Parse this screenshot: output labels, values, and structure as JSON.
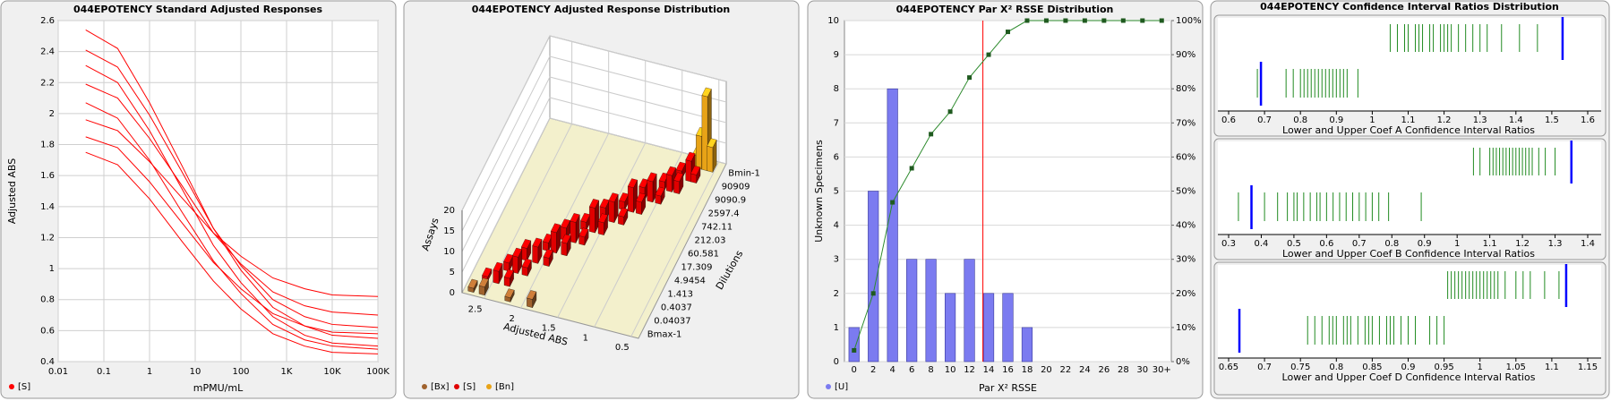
{
  "chart_data": [
    {
      "type": "line",
      "title": "044EPOTENCY Standard Adjusted Responses",
      "xlabel": "mPMU/mL",
      "ylabel": "Adjusted ABS",
      "log_x": true,
      "grid": true,
      "legend": "bottom-left",
      "x": [
        0.04,
        0.2,
        1,
        5,
        25,
        100,
        500,
        2500,
        10000,
        100000
      ],
      "series": [
        {
          "name": "[S]",
          "color": "#ff0000",
          "values": [
            [
              2.54,
              2.42,
              2.07,
              1.67,
              1.26,
              0.99,
              0.75,
              0.63,
              0.57,
              0.55
            ],
            [
              2.41,
              2.3,
              1.99,
              1.63,
              1.26,
              1.02,
              0.8,
              0.69,
              0.64,
              0.62
            ],
            [
              2.31,
              2.2,
              1.89,
              1.52,
              1.15,
              0.91,
              0.69,
              0.57,
              0.52,
              0.5
            ],
            [
              2.19,
              2.1,
              1.84,
              1.54,
              1.23,
              1.03,
              0.85,
              0.76,
              0.72,
              0.7
            ],
            [
              2.07,
              1.97,
              1.7,
              1.37,
              1.05,
              0.84,
              0.64,
              0.54,
              0.5,
              0.48
            ],
            [
              1.96,
              1.89,
              1.69,
              1.46,
              1.23,
              1.08,
              0.94,
              0.87,
              0.83,
              0.82
            ],
            [
              1.85,
              1.78,
              1.56,
              1.3,
              1.04,
              0.87,
              0.71,
              0.63,
              0.59,
              0.58
            ],
            [
              1.75,
              1.67,
              1.45,
              1.18,
              0.92,
              0.74,
              0.58,
              0.5,
              0.46,
              0.45
            ]
          ]
        }
      ],
      "xlim": [
        0.01,
        100000
      ],
      "xticks": [
        0.01,
        0.1,
        1,
        10,
        100,
        {
          "value": 1000,
          "label": "1K"
        },
        {
          "value": 10000,
          "label": "10K"
        },
        {
          "value": 100000,
          "label": "100K"
        }
      ],
      "ylim": [
        0.4,
        2.6
      ],
      "yticks": [
        0.4,
        0.6,
        0.8,
        1,
        1.2,
        1.4,
        1.6,
        1.8,
        2,
        2.2,
        2.4,
        2.6
      ]
    },
    {
      "type": "bar3d",
      "title": "044EPOTENCY Adjusted Response Distribution",
      "xlabel": "Adjusted ABS",
      "ylabel": "Dilutions",
      "zlabel": "Assays",
      "dilutions": [
        "Bmax-1",
        "0.04037",
        "0.4037",
        "1.413",
        "4.9454",
        "17.309",
        "60.581",
        "212.03",
        "742.11",
        "2597.4",
        "9090.9",
        "90909",
        "Bmin-1"
      ],
      "xlim": [
        0.4,
        2.8
      ],
      "xticks": [
        0.5,
        1,
        1.5,
        2,
        2.5
      ],
      "zlim": [
        0,
        20
      ],
      "zticks": [
        0,
        5,
        10,
        15,
        20
      ],
      "floor_color": "#f3f0cc",
      "series": [
        {
          "name": "[Bx]",
          "color": "#a0622d",
          "x": [
            2.7,
            2.55,
            2.2,
            1.9
          ],
          "dilution": [
            "Bmax-1",
            "Bmax-1",
            "Bmax-1",
            "Bmax-1"
          ],
          "values": [
            1,
            2,
            1,
            2
          ]
        },
        {
          "name": "[S]",
          "color": "#e00000",
          "x": [
            2.6,
            2.45,
            2.3,
            2.4,
            2.28,
            2.15,
            2.25,
            2.1,
            1.95,
            2.05,
            1.94,
            1.8,
            1.9,
            1.77,
            1.65,
            1.72,
            1.6,
            1.48,
            1.55,
            1.43,
            1.3,
            1.38,
            1.26,
            1.15,
            1.2,
            1.09,
            0.98,
            1.02,
            0.92,
            0.82,
            0.88,
            0.75,
            0.68
          ],
          "dilution": [
            "0.04037",
            "0.04037",
            "0.04037",
            "0.4037",
            "0.4037",
            "0.4037",
            "1.413",
            "1.413",
            "1.413",
            "4.9454",
            "4.9454",
            "4.9454",
            "17.309",
            "17.309",
            "17.309",
            "60.581",
            "60.581",
            "60.581",
            "212.03",
            "212.03",
            "212.03",
            "742.11",
            "742.11",
            "742.11",
            "2597.4",
            "2597.4",
            "2597.4",
            "9090.9",
            "9090.9",
            "9090.9",
            "90909",
            "90909",
            "90909"
          ],
          "values": [
            1,
            3,
            2,
            2,
            4,
            2,
            3,
            4,
            2,
            2,
            5,
            3,
            3,
            5,
            2,
            2,
            6,
            3,
            3,
            5,
            2,
            2,
            6,
            3,
            3,
            5,
            2,
            2,
            4,
            3,
            2,
            5,
            2
          ]
        },
        {
          "name": "[Bn]",
          "color": "#e8a317",
          "x": [
            0.75,
            0.7,
            0.62,
            0.55
          ],
          "dilution": [
            "Bmin-1",
            "Bmin-1",
            "Bmin-1",
            "Bmin-1"
          ],
          "values": [
            3,
            8,
            18,
            6
          ]
        }
      ]
    },
    {
      "type": "bar",
      "title": "044EPOTENCY Par X² RSSE Distribution",
      "xlabel": "Par X² RSSE",
      "ylabel": "Unknown Specimens",
      "grid": true,
      "categories": [
        0,
        2,
        4,
        6,
        8,
        10,
        12,
        14,
        16,
        18,
        20,
        22,
        24,
        26,
        28,
        30,
        "30+"
      ],
      "series": [
        {
          "name": "[U]",
          "color": "#7b7bf0",
          "values": [
            1,
            5,
            8,
            3,
            3,
            2,
            3,
            2,
            2,
            1,
            0,
            0,
            0,
            0,
            0,
            0,
            0
          ]
        }
      ],
      "cumulative": {
        "axis": "y2",
        "color": "#2e8b2e",
        "values": [
          3.3,
          20,
          46.7,
          56.7,
          66.7,
          73.3,
          83.3,
          90,
          96.7,
          100,
          100,
          100,
          100,
          100,
          100,
          100,
          100
        ]
      },
      "threshold": {
        "value": 13.4,
        "color": "#ff0000"
      },
      "ylim": [
        0,
        10
      ],
      "yticks": [
        0,
        1,
        2,
        3,
        4,
        5,
        6,
        7,
        8,
        9,
        10
      ],
      "y2lim": [
        0,
        100
      ],
      "y2ticks": [
        {
          "value": 0,
          "label": "0%"
        },
        {
          "value": 10,
          "label": "10%"
        },
        {
          "value": 20,
          "label": "20%"
        },
        {
          "value": 30,
          "label": "30%"
        },
        {
          "value": 40,
          "label": "40%"
        },
        {
          "value": 50,
          "label": "50%"
        },
        {
          "value": 60,
          "label": "60%"
        },
        {
          "value": 70,
          "label": "70%"
        },
        {
          "value": 80,
          "label": "80%"
        },
        {
          "value": 90,
          "label": "90%"
        },
        {
          "value": 100,
          "label": "100%"
        }
      ]
    },
    {
      "type": "strip",
      "title": "044EPOTENCY Confidence Interval Ratios Distribution",
      "marker_color": "#0000ff",
      "panels": [
        {
          "xlabel": "Lower and Upper Coef A Confidence Interval Ratios",
          "xlim": [
            0.6,
            1.6
          ],
          "xticks": [
            0.6,
            0.7,
            0.8,
            0.9,
            1,
            1.1,
            1.2,
            1.3,
            1.4,
            1.5,
            1.6
          ],
          "rows": [
            {
              "color": "#228b22",
              "values": [
                1.05,
                1.07,
                1.09,
                1.1,
                1.12,
                1.13,
                1.14,
                1.16,
                1.17,
                1.19,
                1.2,
                1.21,
                1.22,
                1.24,
                1.26,
                1.28,
                1.3,
                1.32,
                1.36,
                1.41,
                1.46
              ],
              "marker": 1.53
            },
            {
              "color": "#228b22",
              "values": [
                0.68,
                0.76,
                0.78,
                0.8,
                0.81,
                0.82,
                0.83,
                0.84,
                0.85,
                0.86,
                0.87,
                0.88,
                0.89,
                0.9,
                0.91,
                0.92,
                0.93,
                0.96
              ],
              "marker": 0.69
            }
          ]
        },
        {
          "xlabel": "Lower and Upper Coef B Confidence Interval Ratios",
          "xlim": [
            0.3,
            1.4
          ],
          "xticks": [
            0.3,
            0.4,
            0.5,
            0.6,
            0.7,
            0.8,
            0.9,
            1,
            1.1,
            1.2,
            1.3,
            1.4
          ],
          "rows": [
            {
              "color": "#228b22",
              "values": [
                1.05,
                1.07,
                1.1,
                1.11,
                1.12,
                1.13,
                1.14,
                1.15,
                1.16,
                1.17,
                1.18,
                1.19,
                1.2,
                1.21,
                1.22,
                1.23,
                1.25,
                1.27,
                1.3
              ],
              "marker": 1.35
            },
            {
              "color": "#228b22",
              "values": [
                0.33,
                0.41,
                0.45,
                0.48,
                0.5,
                0.51,
                0.53,
                0.55,
                0.57,
                0.58,
                0.6,
                0.62,
                0.64,
                0.66,
                0.68,
                0.7,
                0.72,
                0.74,
                0.76,
                0.79,
                0.89
              ],
              "marker": 0.37
            }
          ]
        },
        {
          "xlabel": "Lower and Upper Coef D Confidence Interval Ratios",
          "xlim": [
            0.65,
            1.15
          ],
          "xticks": [
            0.65,
            0.7,
            0.75,
            0.8,
            0.85,
            0.9,
            0.95,
            1,
            1.05,
            1.1,
            1.15
          ],
          "rows": [
            {
              "color": "#228b22",
              "values": [
                0.955,
                0.96,
                0.965,
                0.97,
                0.975,
                0.98,
                0.985,
                0.99,
                0.995,
                1,
                1.005,
                1.01,
                1.015,
                1.02,
                1.025,
                1.035,
                1.05,
                1.06,
                1.07,
                1.09,
                1.11
              ],
              "marker": 1.12
            },
            {
              "color": "#228b22",
              "values": [
                0.76,
                0.77,
                0.78,
                0.79,
                0.795,
                0.8,
                0.81,
                0.815,
                0.82,
                0.83,
                0.84,
                0.845,
                0.85,
                0.86,
                0.87,
                0.875,
                0.88,
                0.89,
                0.9,
                0.91,
                0.93,
                0.94,
                0.95
              ],
              "marker": 0.665
            }
          ]
        }
      ]
    }
  ]
}
